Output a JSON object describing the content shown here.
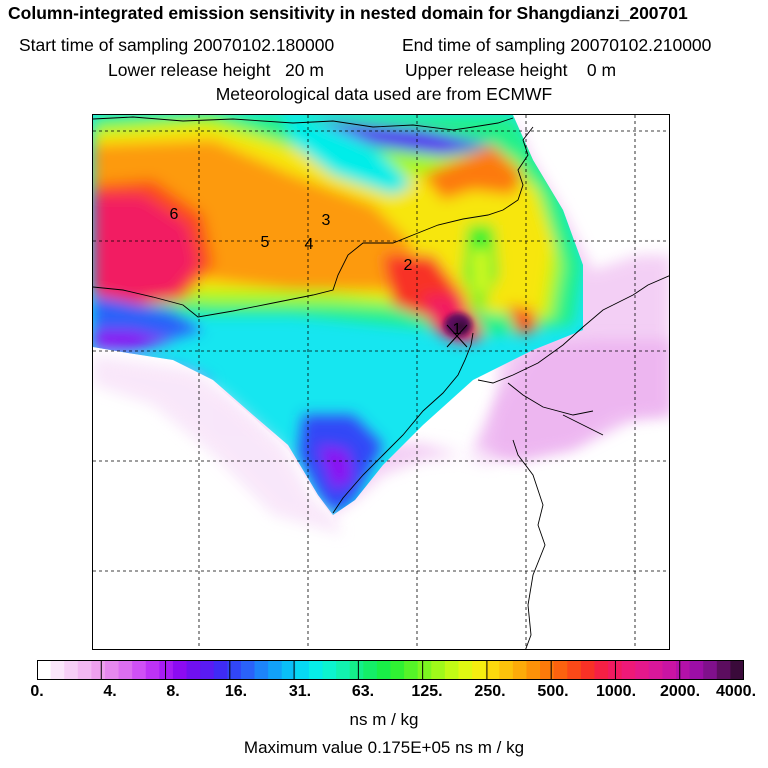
{
  "header": {
    "title": "Column-integrated emission sensitivity in nested domain for Shangdianzi_200701",
    "start_time": "Start time of sampling 20070102.180000",
    "end_time": "End time of sampling 20070102.210000",
    "lower_height": "Lower release height   20 m",
    "upper_height": "Upper release height    0 m",
    "met_data": "Meteorological data used are from ECMWF"
  },
  "map": {
    "labels": [
      "1",
      "2",
      "3",
      "4",
      "5",
      "6"
    ]
  },
  "colorbar": {
    "ticks": [
      "0.",
      "4.",
      "8.",
      "16.",
      "31.",
      "63.",
      "125.",
      "250.",
      "500.",
      "1000.",
      "2000.",
      "4000."
    ],
    "units": "ns m / kg",
    "colors": [
      "#ffffff",
      "#fbe6fb",
      "#f7cff7",
      "#f3b8f3",
      "#eea0ee",
      "#e688ee",
      "#dc6ef0",
      "#cf50f5",
      "#bd33f6",
      "#a61cf5",
      "#8c0bf2",
      "#7010f0",
      "#5a1bf3",
      "#3f2bf5",
      "#3146f7",
      "#2a62f9",
      "#1d84fa",
      "#12a1f9",
      "#0abff7",
      "#06d9f3",
      "#06ede9",
      "#0cf4cf",
      "#12f2b0",
      "#14ef8a",
      "#14ee68",
      "#19ef47",
      "#30f133",
      "#55f428",
      "#7cf720",
      "#a0f91a",
      "#c2fb15",
      "#e0f912",
      "#f6ee10",
      "#fcd90d",
      "#fdc30b",
      "#fdab09",
      "#fd9208",
      "#fd7a0a",
      "#fc620f",
      "#fb4918",
      "#f83126",
      "#f52044",
      "#f21a60",
      "#ee1978",
      "#e5188b",
      "#d9179a",
      "#c914a4",
      "#b411a9",
      "#9c0ea6",
      "#80108c",
      "#5c0d5f",
      "#3a0a3a"
    ]
  },
  "max_value": "Maximum value  0.175E+05 ns m / kg"
}
